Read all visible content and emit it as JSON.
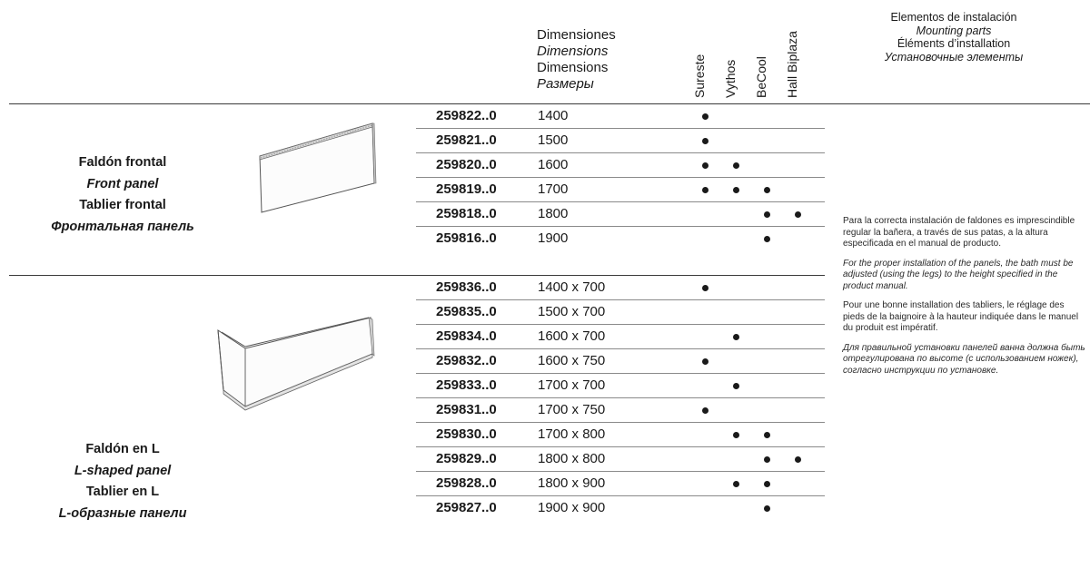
{
  "columns": {
    "dimensions": [
      "Dimensiones",
      "Dimensions",
      "Dimensions",
      "Размеры"
    ],
    "models": [
      "Sureste",
      "Vythos",
      "BeCool",
      "Hall Biplaza"
    ],
    "mounting": [
      "Elementos de instalación",
      "Mounting parts",
      "Éléments d’installation",
      "Установочные элементы"
    ]
  },
  "groups": [
    {
      "names": [
        "Faldón frontal",
        "Front panel",
        "Tablier frontal",
        "Фронтальная панель"
      ],
      "icon": "front-panel-drawing",
      "rows": [
        {
          "code": "259822..0",
          "dim": "1400",
          "marks": [
            true,
            false,
            false,
            false
          ]
        },
        {
          "code": "259821..0",
          "dim": "1500",
          "marks": [
            true,
            false,
            false,
            false
          ]
        },
        {
          "code": "259820..0",
          "dim": "1600",
          "marks": [
            true,
            true,
            false,
            false
          ]
        },
        {
          "code": "259819..0",
          "dim": "1700",
          "marks": [
            true,
            true,
            true,
            false
          ]
        },
        {
          "code": "259818..0",
          "dim": "1800",
          "marks": [
            false,
            false,
            true,
            true
          ]
        },
        {
          "code": "259816..0",
          "dim": "1900",
          "marks": [
            false,
            false,
            true,
            false
          ]
        }
      ]
    },
    {
      "names": [
        "Faldón en L",
        "L-shaped panel",
        "Tablier en L",
        "L-образные панели"
      ],
      "icon": "l-shaped-panel-drawing",
      "rows": [
        {
          "code": "259836..0",
          "dim": "1400 x 700",
          "marks": [
            true,
            false,
            false,
            false
          ]
        },
        {
          "code": "259835..0",
          "dim": "1500 x 700",
          "marks": [
            false,
            false,
            false,
            false
          ]
        },
        {
          "code": "259834..0",
          "dim": "1600 x 700",
          "marks": [
            false,
            true,
            false,
            false
          ]
        },
        {
          "code": "259832..0",
          "dim": "1600 x 750",
          "marks": [
            true,
            false,
            false,
            false
          ]
        },
        {
          "code": "259833..0",
          "dim": "1700 x 700",
          "marks": [
            false,
            true,
            false,
            false
          ]
        },
        {
          "code": "259831..0",
          "dim": "1700 x 750",
          "marks": [
            true,
            false,
            false,
            false
          ]
        },
        {
          "code": "259830..0",
          "dim": "1700 x 800",
          "marks": [
            false,
            true,
            true,
            false
          ]
        },
        {
          "code": "259829..0",
          "dim": "1800 x 800",
          "marks": [
            false,
            false,
            true,
            true
          ]
        },
        {
          "code": "259828..0",
          "dim": "1800 x 900",
          "marks": [
            false,
            true,
            true,
            false
          ]
        },
        {
          "code": "259827..0",
          "dim": "1900 x 900",
          "marks": [
            false,
            false,
            true,
            false
          ]
        }
      ]
    }
  ],
  "notes": [
    "Para la correcta instalación de faldones es imprescindible regular la bañera, a través de sus patas, a la altura especificada en el manual de producto.",
    "For the proper installation of the panels, the bath must be adjusted (using the legs) to the height specified in the product manual.",
    "Pour une bonne installation des tabliers, le réglage des pieds de la baignoire à la hauteur indiquée dans le manuel du produit est impératif.",
    "Для правильной установки панелей ванна должна быть отрегулирована по высоте (с использованием ножек), согласно инструкции по установке."
  ]
}
